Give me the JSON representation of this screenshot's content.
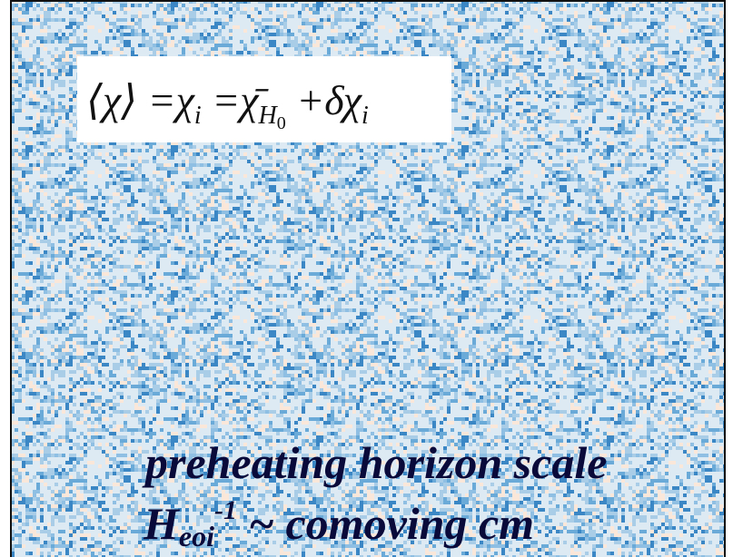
{
  "formula": [
    "⟨χ⟩ =χ",
    "i",
    " =χ̄",
    "H",
    "0",
    " +δχ",
    "i"
  ],
  "label": {
    "line1": "preheating horizon scale",
    "line2": [
      "H",
      "eoi",
      "-1",
      " ~ comoving cm"
    ]
  }
}
